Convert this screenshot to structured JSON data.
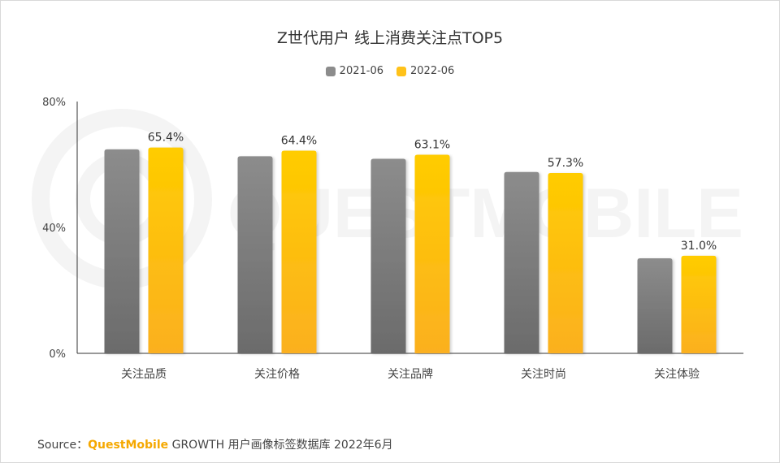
{
  "main": {
    "title": "Z世代用户 线上消费关注点TOP5"
  },
  "legend": [
    {
      "label": "2021-06",
      "color": "#8c8c8c"
    },
    {
      "label": "2022-06",
      "color": "#ffc21a"
    }
  ],
  "watermark": "QUESTMOBILE",
  "source": {
    "prefix": "Source：",
    "brand": "QuestMobile",
    "suffix": "GROWTH 用户画像标签数据库 2022年6月"
  },
  "colors": {
    "series_2021_top": "#8c8c8c",
    "series_2021_bottom": "#6b6b6b",
    "series_2022_top": "#ffcc00",
    "series_2022_bottom": "#fbb020",
    "brand": "#f5a800"
  },
  "chart_data": {
    "type": "bar",
    "title": "Z世代用户 线上消费关注点TOP5",
    "categories": [
      "关注品质",
      "关注价格",
      "关注品牌",
      "关注时尚",
      "关注体验"
    ],
    "series": [
      {
        "name": "2021-06",
        "values": [
          64.8,
          62.6,
          61.8,
          57.6,
          30.2
        ]
      },
      {
        "name": "2022-06",
        "values": [
          65.4,
          64.4,
          63.1,
          57.3,
          31.0
        ]
      }
    ],
    "data_labels": [
      "65.4%",
      "64.4%",
      "63.1%",
      "57.3%",
      "31.0%"
    ],
    "yticks": [
      "0%",
      "40%",
      "80%"
    ],
    "ytick_values": [
      0,
      40,
      80
    ],
    "ylim": [
      0,
      80
    ],
    "xlabel": "",
    "ylabel": "",
    "legend_position": "top",
    "grid": false
  }
}
